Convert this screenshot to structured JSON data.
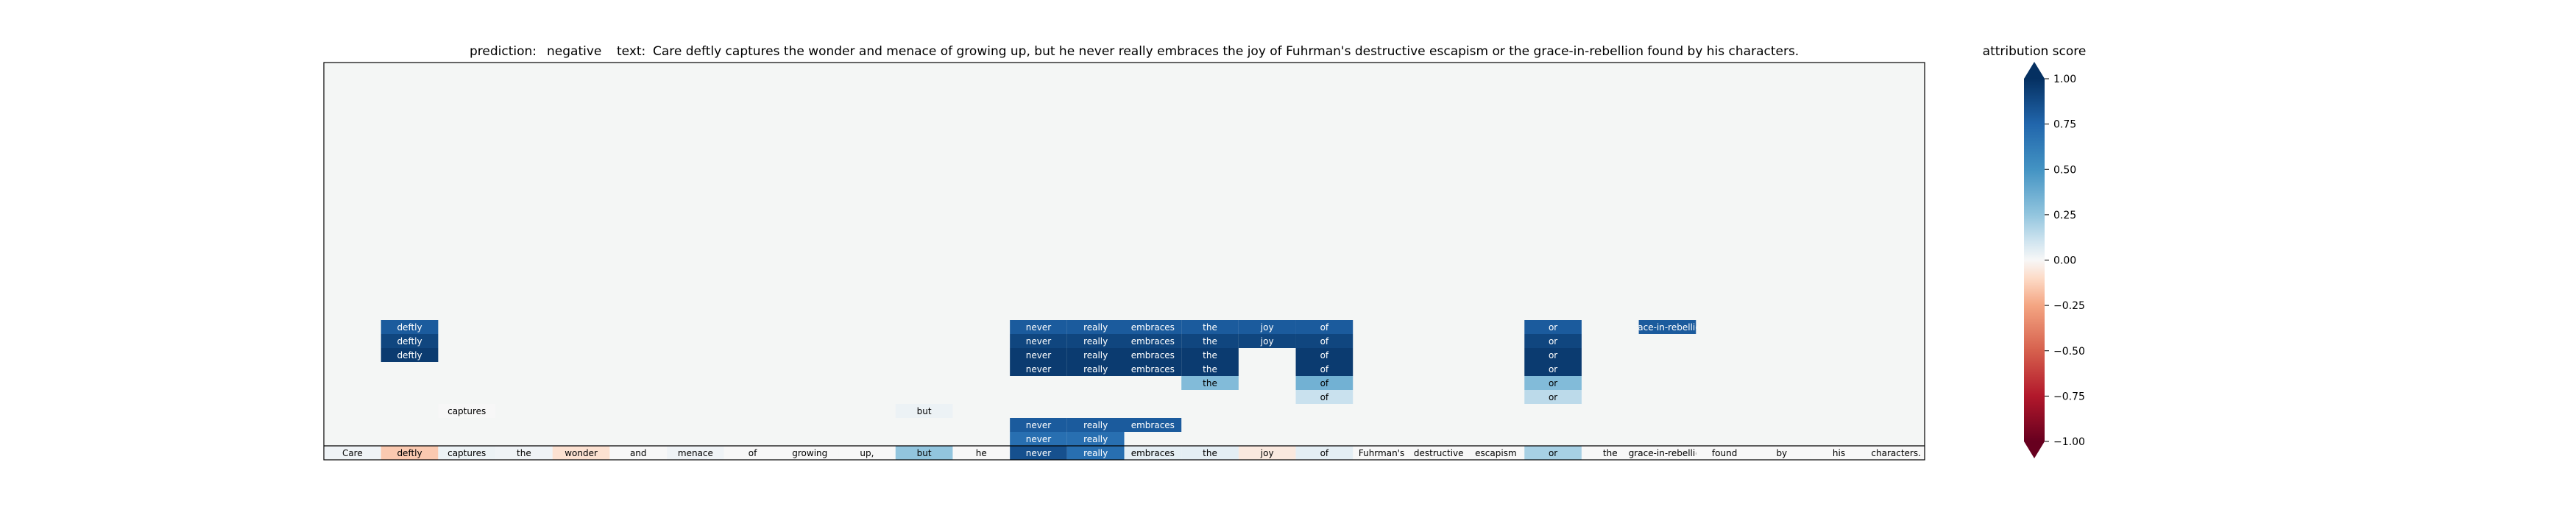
{
  "chart_data": {
    "type": "heatmap",
    "title": {
      "prediction_label": "prediction:",
      "prediction_value": "negative",
      "text_label": "text:",
      "text_value": "Care deftly captures the wonder and menace of growing up, but he never really embraces the joy of Fuhrman's destructive escapism or the grace-in-rebellion found by his characters."
    },
    "tokens": [
      "Care",
      "deftly",
      "captures",
      "the",
      "wonder",
      "and",
      "menace",
      "of",
      "growing",
      "up,",
      "but",
      "he",
      "never",
      "really",
      "embraces",
      "the",
      "joy",
      "of",
      "Fuhrman's",
      "destructive",
      "escapism",
      "or",
      "the",
      "grace-in-rebellion",
      "found",
      "by",
      "his",
      "characters."
    ],
    "base_row_scores": [
      0.02,
      -0.15,
      0.03,
      0.02,
      -0.08,
      0.0,
      0.02,
      0.0,
      0.0,
      0.0,
      0.25,
      0.0,
      0.85,
      0.7,
      0.05,
      0.05,
      -0.05,
      0.05,
      0.0,
      0.0,
      0.0,
      0.2,
      0.0,
      0.0,
      0.0,
      0.0,
      0.0,
      0.0
    ],
    "rows_above_base": 14,
    "phrase_cells": [
      {
        "row": 1,
        "col": 12,
        "text": "never",
        "score": 0.7
      },
      {
        "row": 1,
        "col": 13,
        "text": "really",
        "score": 0.7
      },
      {
        "row": 2,
        "col": 12,
        "text": "never",
        "score": 0.8
      },
      {
        "row": 2,
        "col": 13,
        "text": "really",
        "score": 0.8
      },
      {
        "row": 2,
        "col": 14,
        "text": "embraces",
        "score": 0.8
      },
      {
        "row": 3,
        "col": 2,
        "text": "captures",
        "score": 0.0
      },
      {
        "row": 3,
        "col": 10,
        "text": "but",
        "score": 0.03
      },
      {
        "row": 4,
        "col": 17,
        "text": "of",
        "score": 0.12
      },
      {
        "row": 4,
        "col": 21,
        "text": "or",
        "score": 0.15
      },
      {
        "row": 5,
        "col": 15,
        "text": "the",
        "score": 0.3
      },
      {
        "row": 5,
        "col": 17,
        "text": "of",
        "score": 0.35
      },
      {
        "row": 5,
        "col": 21,
        "text": "or",
        "score": 0.3
      },
      {
        "row": 6,
        "col": 12,
        "text": "never",
        "score": 0.95
      },
      {
        "row": 6,
        "col": 13,
        "text": "really",
        "score": 0.95
      },
      {
        "row": 6,
        "col": 14,
        "text": "embraces",
        "score": 0.95
      },
      {
        "row": 6,
        "col": 15,
        "text": "the",
        "score": 0.95
      },
      {
        "row": 6,
        "col": 17,
        "text": "of",
        "score": 0.95
      },
      {
        "row": 6,
        "col": 21,
        "text": "or",
        "score": 0.95
      },
      {
        "row": 7,
        "col": 1,
        "text": "deftly",
        "score": 0.95
      },
      {
        "row": 7,
        "col": 12,
        "text": "never",
        "score": 0.95
      },
      {
        "row": 7,
        "col": 13,
        "text": "really",
        "score": 0.95
      },
      {
        "row": 7,
        "col": 14,
        "text": "embraces",
        "score": 0.95
      },
      {
        "row": 7,
        "col": 15,
        "text": "the",
        "score": 0.95
      },
      {
        "row": 7,
        "col": 17,
        "text": "of",
        "score": 0.95
      },
      {
        "row": 7,
        "col": 21,
        "text": "or",
        "score": 0.95
      },
      {
        "row": 8,
        "col": 1,
        "text": "deftly",
        "score": 0.9
      },
      {
        "row": 8,
        "col": 12,
        "text": "never",
        "score": 0.9
      },
      {
        "row": 8,
        "col": 13,
        "text": "really",
        "score": 0.9
      },
      {
        "row": 8,
        "col": 14,
        "text": "embraces",
        "score": 0.9
      },
      {
        "row": 8,
        "col": 15,
        "text": "the",
        "score": 0.9
      },
      {
        "row": 8,
        "col": 16,
        "text": "joy",
        "score": 0.9
      },
      {
        "row": 8,
        "col": 17,
        "text": "of",
        "score": 0.9
      },
      {
        "row": 8,
        "col": 21,
        "text": "or",
        "score": 0.9
      },
      {
        "row": 9,
        "col": 1,
        "text": "deftly",
        "score": 0.8
      },
      {
        "row": 9,
        "col": 12,
        "text": "never",
        "score": 0.8
      },
      {
        "row": 9,
        "col": 13,
        "text": "really",
        "score": 0.8
      },
      {
        "row": 9,
        "col": 14,
        "text": "embraces",
        "score": 0.8
      },
      {
        "row": 9,
        "col": 15,
        "text": "the",
        "score": 0.8
      },
      {
        "row": 9,
        "col": 16,
        "text": "joy",
        "score": 0.8
      },
      {
        "row": 9,
        "col": 17,
        "text": "of",
        "score": 0.8
      },
      {
        "row": 9,
        "col": 21,
        "text": "or",
        "score": 0.8
      },
      {
        "row": 9,
        "col": 23,
        "text": "grace-in-rebellion",
        "score": 0.8
      }
    ],
    "colorbar": {
      "label": "attribution score",
      "ticks": [
        "1.00",
        "0.75",
        "0.50",
        "0.25",
        "0.00",
        "−0.25",
        "−0.50",
        "−0.75",
        "−1.00"
      ],
      "tick_values": [
        1.0,
        0.75,
        0.5,
        0.25,
        0.0,
        -0.25,
        -0.5,
        -0.75,
        -1.0
      ],
      "vmin": -1.0,
      "vmax": 1.0,
      "colormap": "RdBu"
    },
    "colors": {
      "background": "#f4f6f5",
      "negative_end": "#67001f",
      "positive_end": "#053061",
      "frame": "#000000"
    }
  }
}
